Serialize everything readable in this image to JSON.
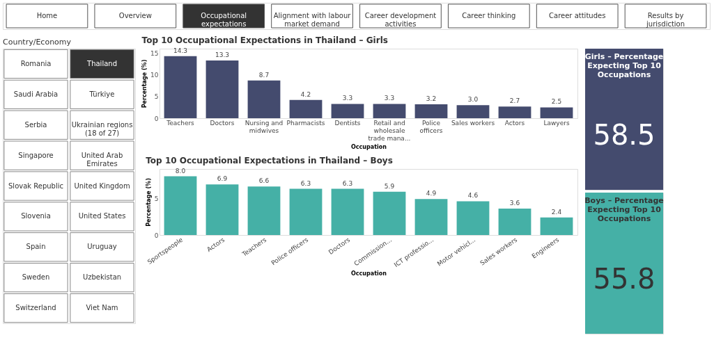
{
  "chart_data": [
    {
      "type": "other",
      "categories": [
        "Home",
        "Overview",
        "Occupational expectations",
        "Alignment with labour market demand",
        "Career development activities",
        "Career thinking",
        "Career attitudes",
        "Results by jurisdiction"
      ],
      "colors": [
        "#ffffff",
        "#ffffff",
        "#333333",
        "#ffffff",
        "#ffffff",
        "#ffffff",
        "#ffffff",
        "#ffffff"
      ]
    },
    {
      "type": "other",
      "title": "Country/Economy",
      "categories": [
        "Romania",
        "Thailand",
        "Saudi Arabia",
        "Türkiye",
        "Serbia",
        "Ukrainian regions (18 of 27)",
        "Singapore",
        "United Arab Emirates",
        "Slovak Republic",
        "United Kingdom",
        "Slovenia",
        "United States",
        "Spain",
        "Uruguay",
        "Sweden",
        "Uzbekistan",
        "Switzerland",
        "Viet Nam"
      ],
      "colors": [
        "#ffffff",
        "#333333",
        "#ffffff",
        "#ffffff",
        "#ffffff",
        "#ffffff",
        "#ffffff",
        "#ffffff",
        "#ffffff",
        "#ffffff",
        "#ffffff",
        "#ffffff",
        "#ffffff",
        "#ffffff",
        "#ffffff",
        "#ffffff",
        "#ffffff",
        "#ffffff"
      ]
    },
    {
      "type": "bar",
      "title": "Top 10 Occupational Expectations in Thailand – Girls",
      "xlabel": "Occupation",
      "ylabel": "Percentage (%)",
      "categories": [
        "Teachers",
        "Doctors",
        "Nursing and midwives",
        "Pharmacists",
        "Dentists",
        "Retail and wholesale trade mana...",
        "Police officers",
        "Sales workers",
        "Actors",
        "Lawyers"
      ],
      "values": [
        14.3,
        13.3,
        8.7,
        4.2,
        3.3,
        3.3,
        3.2,
        3.0,
        2.7,
        2.5
      ],
      "value_labels": [
        "14.3",
        "13.3",
        "8.7",
        "4.2",
        "3.3",
        "3.3",
        "3.2",
        "3.0",
        "2.7",
        "2.5"
      ],
      "color": "#444b6e",
      "ylim": [
        0,
        16
      ],
      "yticks": [
        0,
        5,
        10,
        15
      ]
    },
    {
      "type": "bar",
      "title": "Top 10 Occupational Expectations in Thailand – Boys",
      "xlabel": "Occupation",
      "ylabel": "Percentage (%)",
      "categories": [
        "Sportspeople",
        "Actors",
        "Teachers",
        "Police officers",
        "Doctors",
        "Commission...",
        "ICT professio...",
        "Motor vehicl...",
        "Sales workers",
        "Engineers"
      ],
      "values": [
        8.0,
        6.9,
        6.6,
        6.3,
        6.3,
        5.9,
        4.9,
        4.6,
        3.6,
        2.4
      ],
      "value_labels": [
        "8.0",
        "6.9",
        "6.6",
        "6.3",
        "6.3",
        "5.9",
        "4.9",
        "4.6",
        "3.6",
        "2.4"
      ],
      "color": "#45b0a6",
      "ylim": [
        0,
        9
      ],
      "yticks": [
        0,
        5
      ]
    },
    {
      "type": "other",
      "title": "Girls – Percentage Expecting Top 10 Occupations",
      "values": [
        58.5
      ],
      "colors": [
        "#444b6e"
      ],
      "data_labels": true
    },
    {
      "type": "other",
      "title": "Boys – Percentage Expecting Top 10 Occupations",
      "values": [
        55.8
      ],
      "colors": [
        "#45b0a6"
      ],
      "data_labels": true
    }
  ]
}
